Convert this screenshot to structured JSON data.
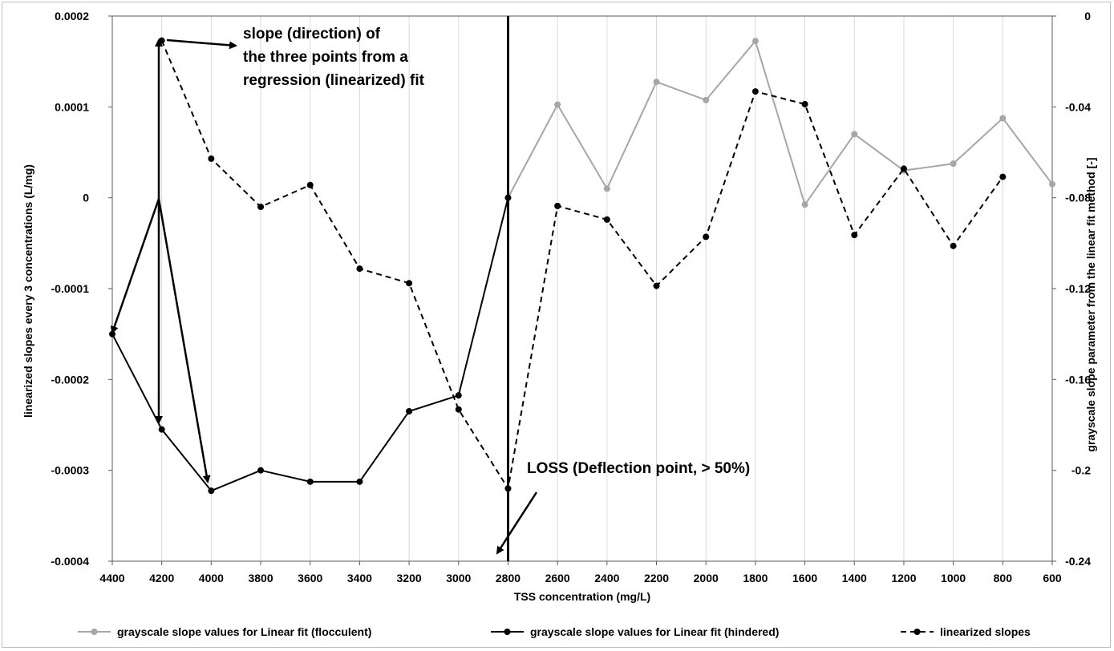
{
  "chart_data": {
    "type": "line",
    "xlabel": "TSS concentration (mg/L)",
    "ylabel_left": "linearized slopes every 3 concentrations (L/mg)",
    "ylabel_right": "grayscale slope parameter from the linear fit method [-]",
    "x_ticks": [
      "4400",
      "4200",
      "4000",
      "3800",
      "3600",
      "3400",
      "3200",
      "3000",
      "2800",
      "2600",
      "2400",
      "2200",
      "2000",
      "1800",
      "1600",
      "1400",
      "1200",
      "1000",
      "800",
      "600"
    ],
    "xlim": [
      4400,
      600
    ],
    "x_reversed": true,
    "ylim_left": [
      -0.0004,
      0.0002
    ],
    "y_ticks_left": [
      "0.0002",
      "0.0001",
      "0",
      "-0.0001",
      "-0.0002",
      "-0.0003",
      "-0.0004"
    ],
    "ylim_right": [
      -0.24,
      0
    ],
    "y_ticks_right": [
      "0",
      "-0.04",
      "-0.08",
      "-0.12",
      "-0.16",
      "-0.2",
      "-0.24"
    ],
    "grid": "vertical",
    "legend_position": "bottom",
    "series": [
      {
        "name": "grayscale slope values for Linear fit (flocculent)",
        "axis": "right",
        "color": "#a6a6a6",
        "style": "solid",
        "x": [
          2800,
          2600,
          2400,
          2200,
          2000,
          1800,
          1600,
          1400,
          1200,
          1000,
          800,
          600
        ],
        "y": [
          -0.08,
          -0.039,
          -0.076,
          -0.029,
          -0.037,
          -0.011,
          -0.083,
          -0.052,
          -0.068,
          -0.065,
          -0.045,
          -0.074
        ]
      },
      {
        "name": "grayscale slope values for Linear fit (hindered)",
        "axis": "right",
        "color": "#000000",
        "style": "solid",
        "x": [
          4400,
          4200,
          4000,
          3800,
          3600,
          3400,
          3200,
          3000,
          2800
        ],
        "y": [
          -0.14,
          -0.182,
          -0.209,
          -0.2,
          -0.205,
          -0.205,
          -0.174,
          -0.167,
          -0.08
        ]
      },
      {
        "name": "linearized slopes",
        "axis": "left",
        "color": "#000000",
        "style": "dashed",
        "x": [
          4200,
          4000,
          3800,
          3600,
          3400,
          3200,
          3000,
          2800,
          2600,
          2400,
          2200,
          2000,
          1800,
          1600,
          1400,
          1200,
          1000,
          800
        ],
        "y": [
          0.000173,
          4.3e-05,
          -1e-05,
          1.4e-05,
          -7.8e-05,
          -9.4e-05,
          -0.000233,
          -0.00032,
          -9e-06,
          -2.4e-05,
          -9.7e-05,
          -4.3e-05,
          0.000117,
          0.000103,
          -4.1e-05,
          3.2e-05,
          -5.3e-05,
          2.3e-05
        ]
      }
    ],
    "annotations": [
      {
        "text_lines": [
          "slope (direction) of",
          "the three points from a",
          "regression (linearized) fit"
        ]
      },
      {
        "text": "LOSS (Deflection point, > 50%)"
      }
    ],
    "vertical_line_at_x": 2800
  }
}
